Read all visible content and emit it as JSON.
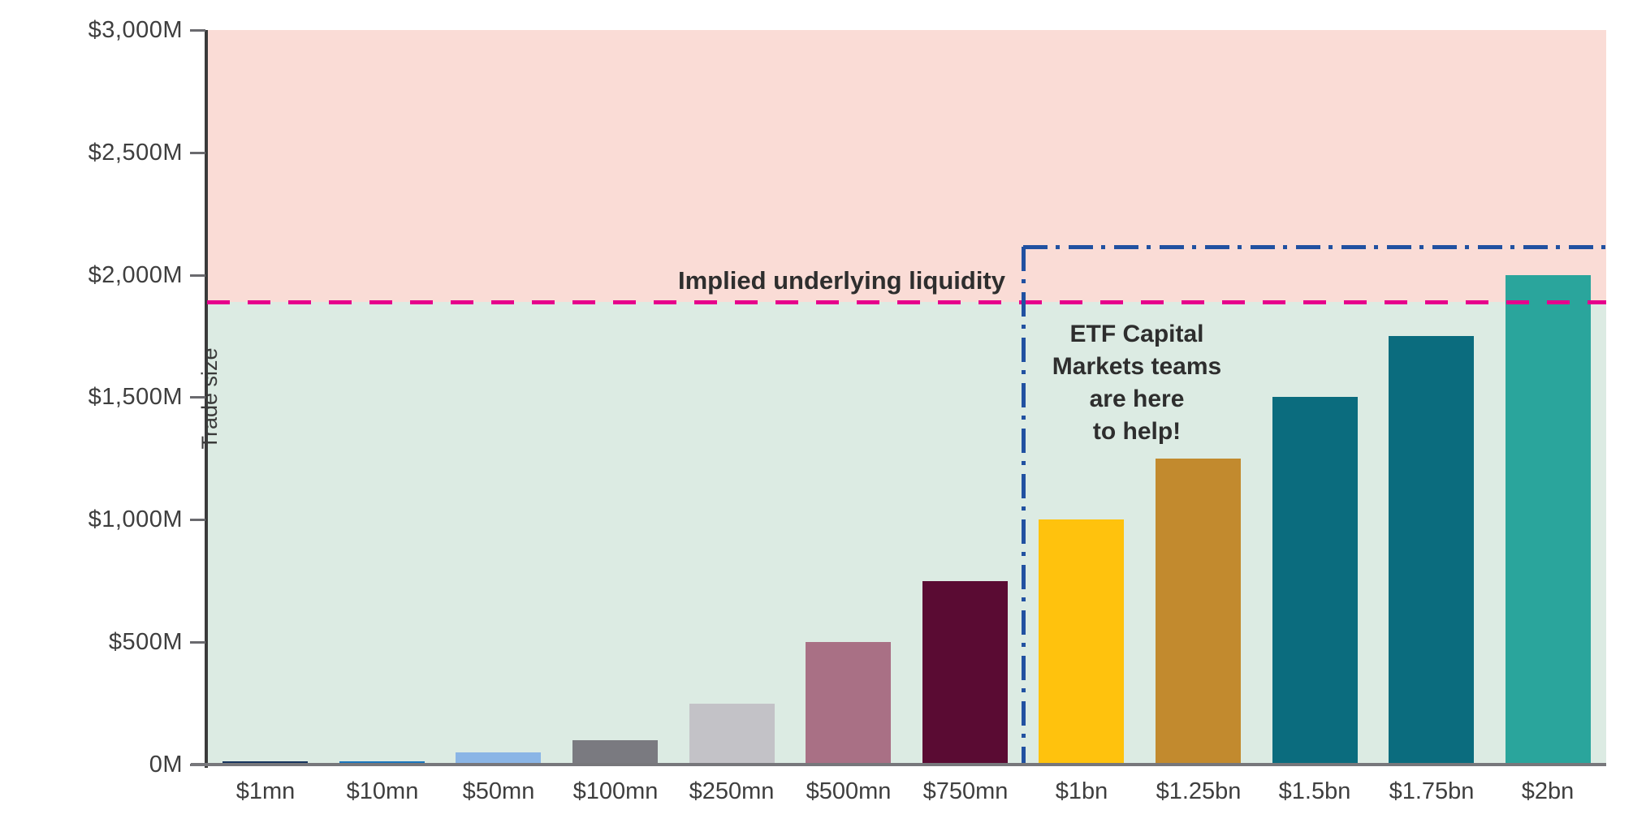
{
  "chart_data": {
    "type": "bar",
    "title": "",
    "xlabel": "",
    "ylabel": "Trade size",
    "ylim": [
      0,
      3000
    ],
    "grid": false,
    "legend": "none",
    "categories": [
      "$1mn",
      "$10mn",
      "$50mn",
      "$100mn",
      "$250mn",
      "$500mn",
      "$750mn",
      "$1bn",
      "$1.25bn",
      "$1.5bn",
      "$1.75bn",
      "$2bn"
    ],
    "values": [
      1,
      10,
      50,
      100,
      250,
      500,
      750,
      1000,
      1250,
      1500,
      1750,
      2000
    ],
    "unit": "M USD",
    "bar_colors": [
      "#17355e",
      "#1b76bd",
      "#8ab5e6",
      "#7a7a80",
      "#c3c2c7",
      "#a97085",
      "#5a0b33",
      "#ffc20d",
      "#c28a2e",
      "#0b6c7e",
      "#0b6c7e",
      "#2aa59c"
    ],
    "y_ticks": [
      {
        "label": "$3,000M",
        "value": 3000
      },
      {
        "label": "$2,500M",
        "value": 2500
      },
      {
        "label": "$2,000M",
        "value": 2000
      },
      {
        "label": "$1,500M",
        "value": 1500
      },
      {
        "label": "$1,000M",
        "value": 1000
      },
      {
        "label": "$500M",
        "value": 500
      },
      {
        "label": "0M",
        "value": 0
      }
    ],
    "zones": {
      "above_line_color": "#fadcd6",
      "below_line_color": "#dcebe3"
    },
    "annotations": {
      "liquidity_line": {
        "label": "Implied underlying liquidity",
        "value_M": 1890,
        "color": "#e6008c",
        "style": "dashed"
      },
      "help_box": {
        "text": "ETF Capital\nMarkets teams\nare here\nto help!",
        "top_value_M": 2115,
        "start_category": "$1bn",
        "color": "#2151a1",
        "style": "dash-dot"
      }
    }
  }
}
